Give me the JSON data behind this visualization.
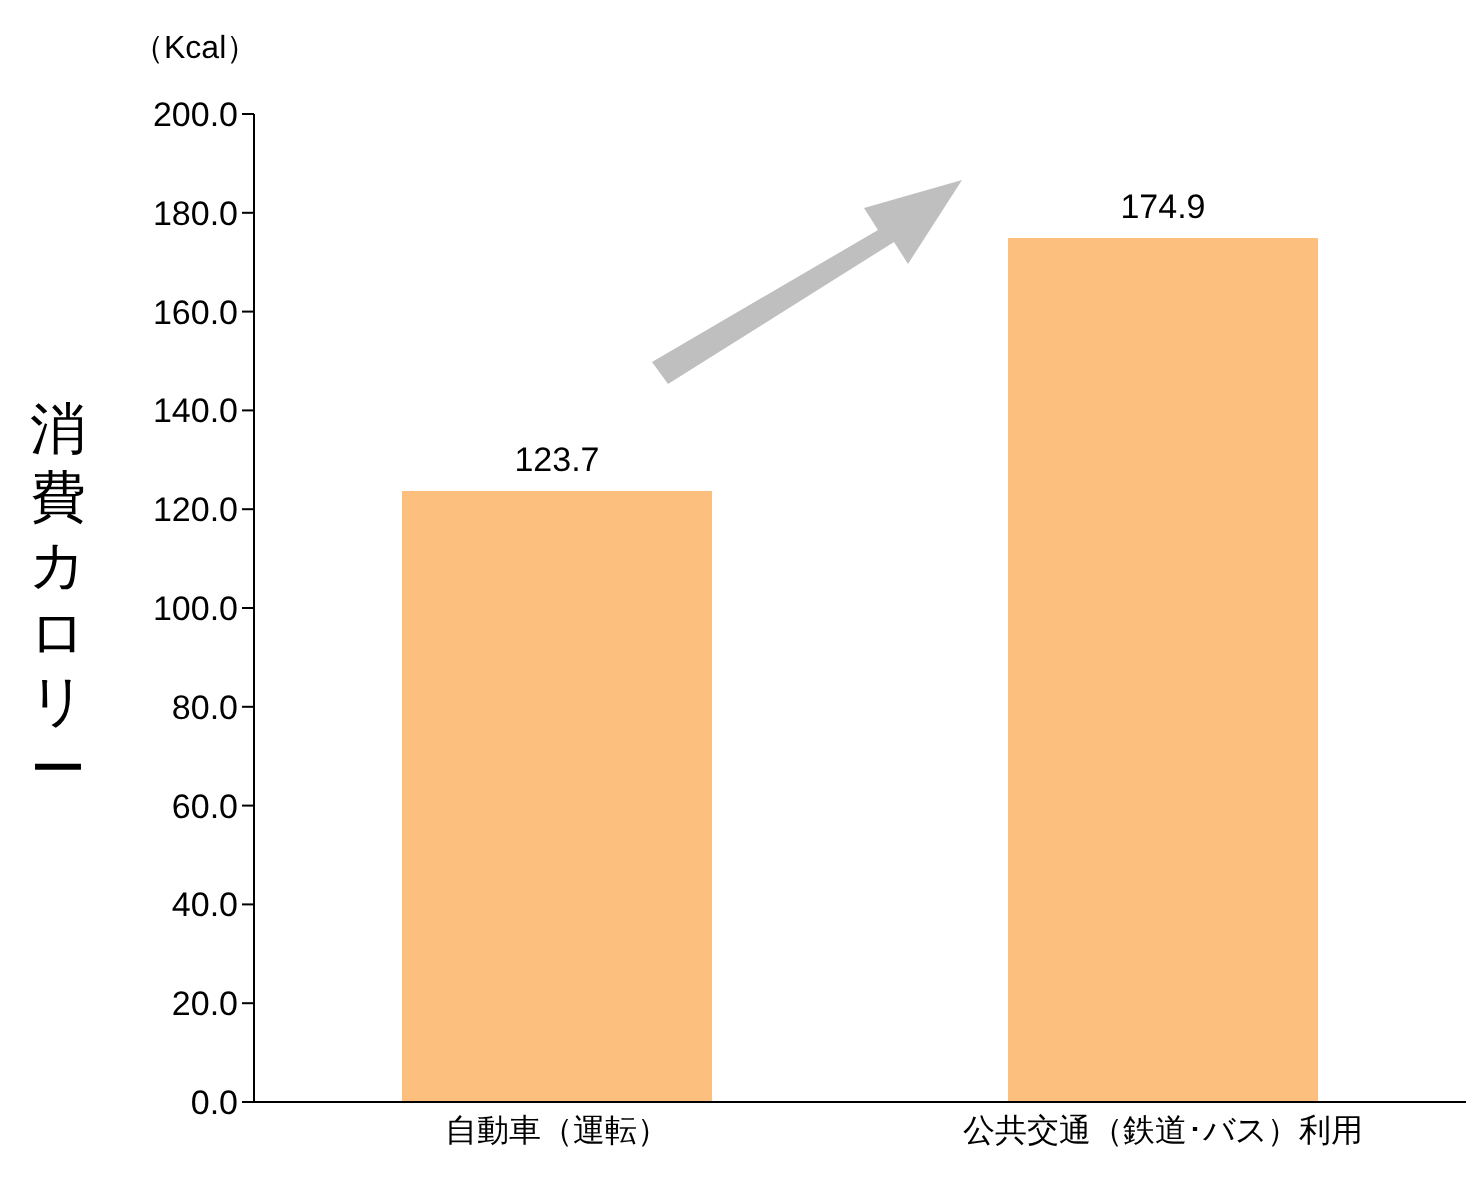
{
  "chart_data": {
    "type": "bar",
    "ylabel": "消費カロリー",
    "annotations": [
      "（Kcal）"
    ],
    "categories": [
      "自動車（運転）",
      "公共交通（鉄道･バス）利用"
    ],
    "values": [
      123.7,
      174.9
    ],
    "color": "#fcbf7e",
    "ylim": [
      0,
      200
    ],
    "yticks": [
      {
        "value": 0,
        "label": "0.0"
      },
      {
        "value": 20,
        "label": "20.0"
      },
      {
        "value": 40,
        "label": "40.0"
      },
      {
        "value": 60,
        "label": "60.0"
      },
      {
        "value": 80,
        "label": "80.0"
      },
      {
        "value": 100,
        "label": "100.0"
      },
      {
        "value": 120,
        "label": "120.0"
      },
      {
        "value": 140,
        "label": "140.0"
      },
      {
        "value": 160,
        "label": "160.0"
      },
      {
        "value": 180,
        "label": "180.0"
      },
      {
        "value": 200,
        "label": "200.0"
      }
    ],
    "data_labels": true,
    "grid": false,
    "legend": false
  }
}
